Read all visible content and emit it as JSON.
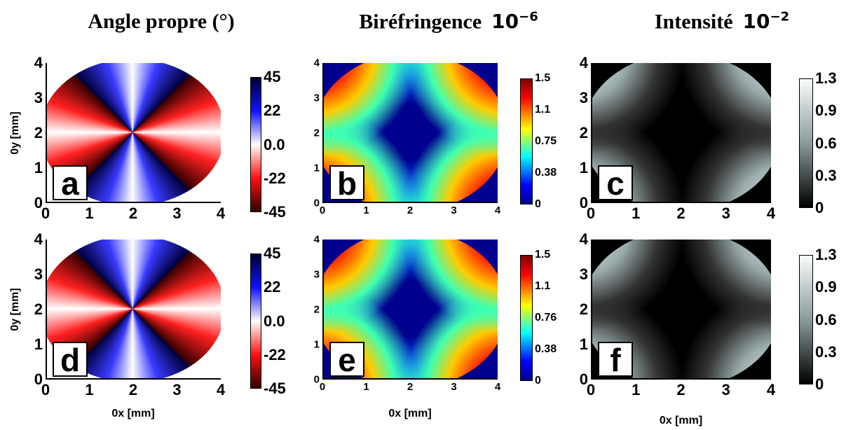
{
  "titles": [
    {
      "text": "Angle propre (°)"
    },
    {
      "text": "Biréfringence",
      "base": "10",
      "exp": "−6"
    },
    {
      "text": "Intensité",
      "base": "10",
      "exp": "−2"
    }
  ],
  "panels": [
    {
      "label": "a",
      "x_ticks": [
        "0",
        "1",
        "2",
        "3",
        "4"
      ],
      "y_ticks": [
        "4",
        "3",
        "2",
        "1",
        "0"
      ],
      "colorbar_ticks": [
        "45",
        "22",
        "0.0",
        "-22",
        "-45"
      ],
      "ylabel": "0y [mm]"
    },
    {
      "label": "b",
      "x_ticks": [
        "0",
        "1",
        "2",
        "3",
        "4"
      ],
      "y_ticks": [
        "4",
        "3",
        "2",
        "1",
        "0"
      ],
      "colorbar_ticks": [
        "1.5",
        "1.1",
        "0.75",
        "0.38",
        "0"
      ]
    },
    {
      "label": "c",
      "x_ticks": [
        "0",
        "1",
        "2",
        "3",
        "4"
      ],
      "y_ticks": [
        "4",
        "3",
        "2",
        "1",
        "0"
      ],
      "colorbar_ticks": [
        "1.3",
        "0.9",
        "0.6",
        "0.3",
        "0"
      ]
    },
    {
      "label": "d",
      "x_ticks": [
        "0",
        "1",
        "2",
        "3",
        "4"
      ],
      "y_ticks": [
        "4",
        "3",
        "2",
        "1",
        "0"
      ],
      "colorbar_ticks": [
        "45",
        "22",
        "0.0",
        "-22",
        "-45"
      ],
      "ylabel": "0y [mm]",
      "xlabel": "0x [mm]"
    },
    {
      "label": "e",
      "x_ticks": [
        "0",
        "1",
        "2",
        "3",
        "4"
      ],
      "y_ticks": [
        "4",
        "3",
        "2",
        "1",
        "0"
      ],
      "colorbar_ticks": [
        "1.5",
        "1.1",
        "0.76",
        "0.38",
        "0"
      ],
      "xlabel": "0x [mm]"
    },
    {
      "label": "f",
      "x_ticks": [
        "0",
        "1",
        "2",
        "3",
        "4"
      ],
      "y_ticks": [
        "4",
        "3",
        "2",
        "1",
        "0"
      ],
      "colorbar_ticks": [
        "1.3",
        "0.9",
        "0.6",
        "0.3",
        "0"
      ],
      "xlabel": "0x [mm]"
    }
  ]
}
